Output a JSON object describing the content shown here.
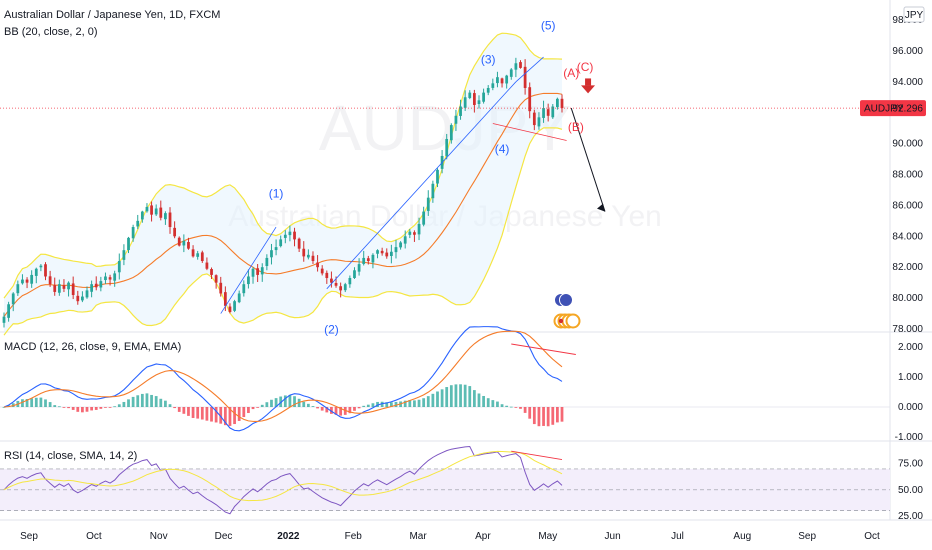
{
  "chart_data": [
    {
      "type": "candlestick",
      "title": "Australian Dollar / Japanese Yen, 1D, FXCM",
      "currency": "JPY",
      "indicator_label": "BB (20, close, 2, 0)",
      "watermark_symbol": "AUDJPY",
      "watermark_name": "Australian Dollar / Japanese Yen",
      "price_tag": {
        "symbol": "AUDJPY",
        "value": "92.296",
        "color": "#f23645"
      },
      "y_ticks": [
        "98.000",
        "96.000",
        "94.000",
        "92.000",
        "90.000",
        "88.000",
        "86.000",
        "84.000",
        "82.000",
        "80.000",
        "78.000"
      ],
      "ylim": [
        78,
        98
      ],
      "bollinger_fill_color": "#e3f2fd",
      "bollinger_band_color": "#f5e642",
      "basis_color": "#f57c2a",
      "up_color": "#26a69a",
      "down_color": "#d32f2f",
      "approx_closes": [
        78.8,
        79.6,
        80.3,
        80.9,
        81.2,
        81.0,
        81.5,
        81.9,
        82.1,
        81.4,
        80.9,
        80.4,
        80.9,
        80.6,
        81.0,
        80.2,
        79.8,
        80.1,
        80.5,
        80.9,
        80.7,
        81.1,
        81.4,
        81.2,
        81.6,
        82.4,
        83.1,
        83.9,
        84.6,
        85.0,
        85.6,
        85.9,
        85.4,
        85.8,
        85.2,
        85.5,
        84.6,
        84.0,
        83.4,
        83.7,
        83.2,
        82.7,
        82.9,
        82.4,
        81.9,
        81.5,
        81.0,
        80.3,
        79.5,
        79.1,
        79.8,
        80.3,
        80.9,
        81.4,
        81.9,
        81.5,
        82.0,
        82.6,
        83.1,
        83.3,
        83.8,
        84.1,
        84.3,
        83.8,
        83.2,
        82.7,
        82.8,
        82.4,
        82.0,
        81.6,
        81.3,
        81.0,
        80.8,
        80.5,
        80.9,
        81.3,
        81.8,
        82.2,
        82.6,
        82.4,
        82.8,
        83.1,
        82.9,
        82.7,
        83.0,
        83.3,
        83.6,
        84.0,
        84.3,
        84.1,
        84.8,
        85.6,
        86.5,
        87.4,
        88.3,
        89.2,
        90.3,
        91.2,
        91.8,
        92.4,
        93.0,
        93.3,
        92.5,
        92.8,
        93.3,
        93.6,
        93.9,
        94.3,
        93.9,
        94.4,
        94.8,
        95.2,
        94.9,
        93.6,
        92.1,
        91.2,
        91.7,
        92.3,
        91.8,
        92.4,
        92.9,
        92.3
      ],
      "wave_labels": [
        {
          "text": "(1)",
          "color": "#2962ff"
        },
        {
          "text": "(2)",
          "color": "#2962ff"
        },
        {
          "text": "(3)",
          "color": "#2962ff"
        },
        {
          "text": "(4)",
          "color": "#2962ff"
        },
        {
          "text": "(5)",
          "color": "#2962ff"
        },
        {
          "text": "(A)",
          "color": "#f23645"
        },
        {
          "text": "(B)",
          "color": "#f23645"
        },
        {
          "text": "(C)",
          "color": "#f23645"
        }
      ]
    },
    {
      "type": "line",
      "title": "MACD (12, 26, close, 9, EMA, EMA)",
      "y_ticks": [
        "2.000",
        "1.000",
        "0.000",
        "-1.000"
      ],
      "ylim": [
        -1.1,
        2.3
      ],
      "macd_color": "#2962ff",
      "signal_color": "#f57c2a",
      "hist_pos_color": "#26a69a",
      "hist_neg_color": "#f23645"
    },
    {
      "type": "line",
      "title": "RSI (14, close, SMA, 14, 2)",
      "y_ticks": [
        "75.00",
        "50.00",
        "25.00"
      ],
      "ylim": [
        22,
        92
      ],
      "rsi_color": "#7e57c2",
      "ma_color": "#f5e642",
      "band_fill_color": "#f3eefb"
    }
  ],
  "x_ticks": [
    "Sep",
    "Oct",
    "Nov",
    "Dec",
    "2022",
    "Feb",
    "Mar",
    "Apr",
    "May",
    "Jun",
    "Jul",
    "Aug",
    "Sep",
    "Oct"
  ]
}
